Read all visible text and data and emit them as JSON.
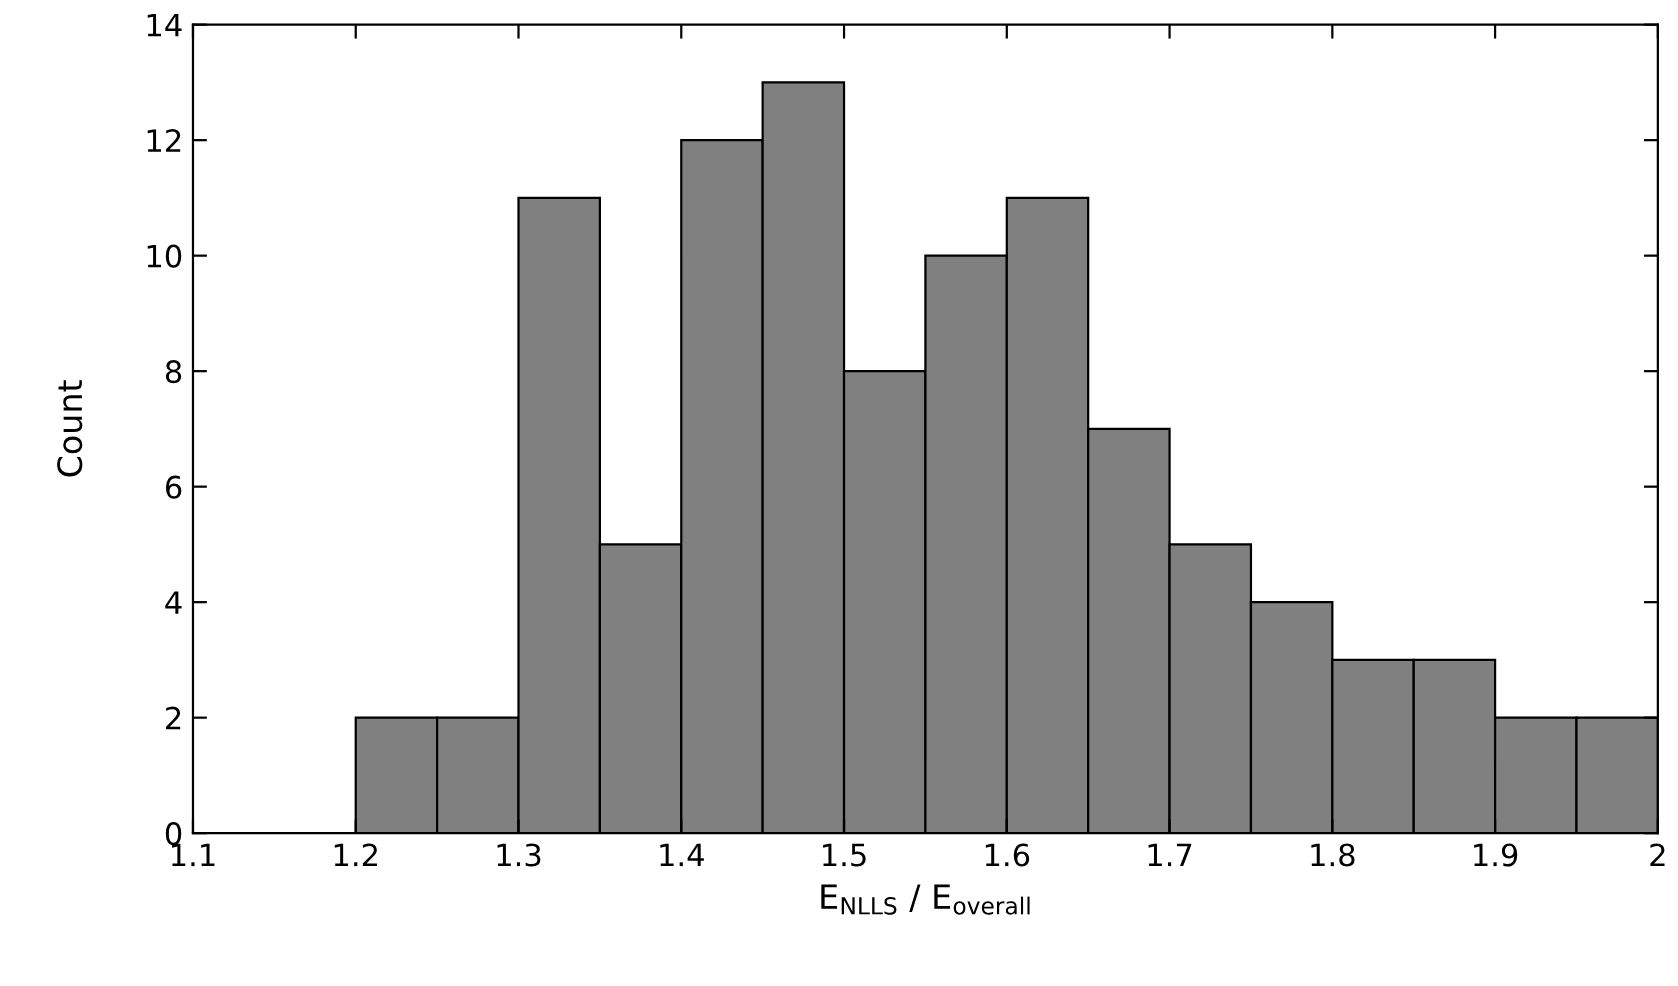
{
  "chart_data": {
    "type": "histogram",
    "xlabel": "E$_{NLLS}$ / E$_{overall}$",
    "ylabel": "Count",
    "bins": [
      1.1,
      1.15,
      1.2,
      1.25,
      1.3,
      1.35,
      1.4,
      1.45,
      1.5,
      1.55,
      1.6,
      1.65,
      1.7,
      1.75,
      1.8,
      1.85,
      1.9,
      1.95,
      2.0
    ],
    "values": [
      0,
      0,
      2,
      2,
      11,
      5,
      12,
      13,
      8,
      10,
      11,
      7,
      5,
      4,
      3,
      3,
      2,
      2
    ],
    "color": "#808080",
    "xlim": [
      1.1,
      2.0
    ],
    "xticks": [
      1.1,
      1.2,
      1.3,
      1.4,
      1.5,
      1.6,
      1.7,
      1.8,
      1.9,
      2
    ],
    "ylim": [
      0,
      14
    ],
    "yticks": [
      0,
      2,
      4,
      6,
      8,
      10,
      12,
      14
    ],
    "grid": false
  }
}
